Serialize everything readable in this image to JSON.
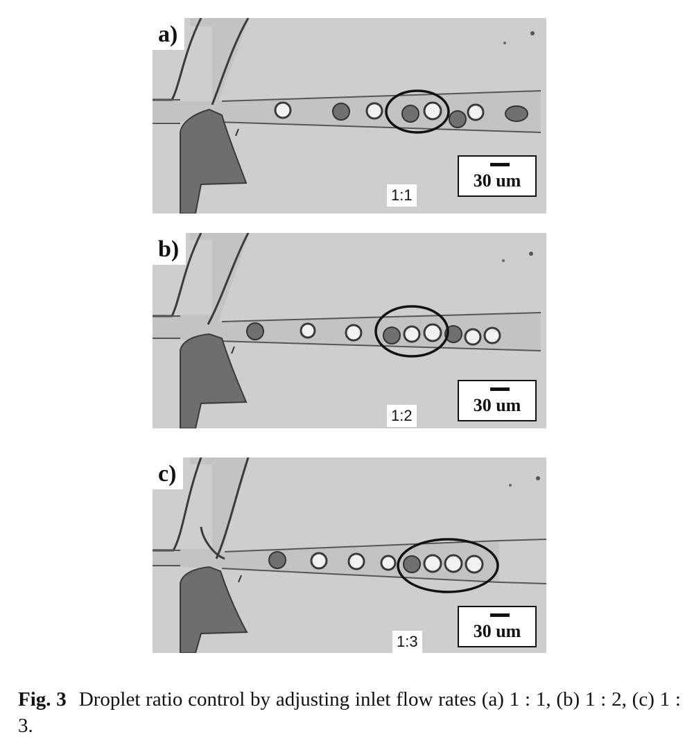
{
  "panels": [
    {
      "label": "a)",
      "ratio": "1:1",
      "scale": "30 um"
    },
    {
      "label": "b)",
      "ratio": "1:2",
      "scale": "30 um"
    },
    {
      "label": "c)",
      "ratio": "1:3",
      "scale": "30 um"
    }
  ],
  "caption": {
    "fig_label": "Fig. 3",
    "text": "Droplet ratio control by adjusting inlet flow rates (a) 1 : 1, (b) 1 : 2, (c) 1 : 3."
  },
  "colors": {
    "background": "#d2d2d0",
    "channel": "#bdbdbb",
    "dark_fluid": "#6e6e6c",
    "dark_droplet": "#707070",
    "light_droplet": "#f2f2f2",
    "outline": "#222222"
  }
}
